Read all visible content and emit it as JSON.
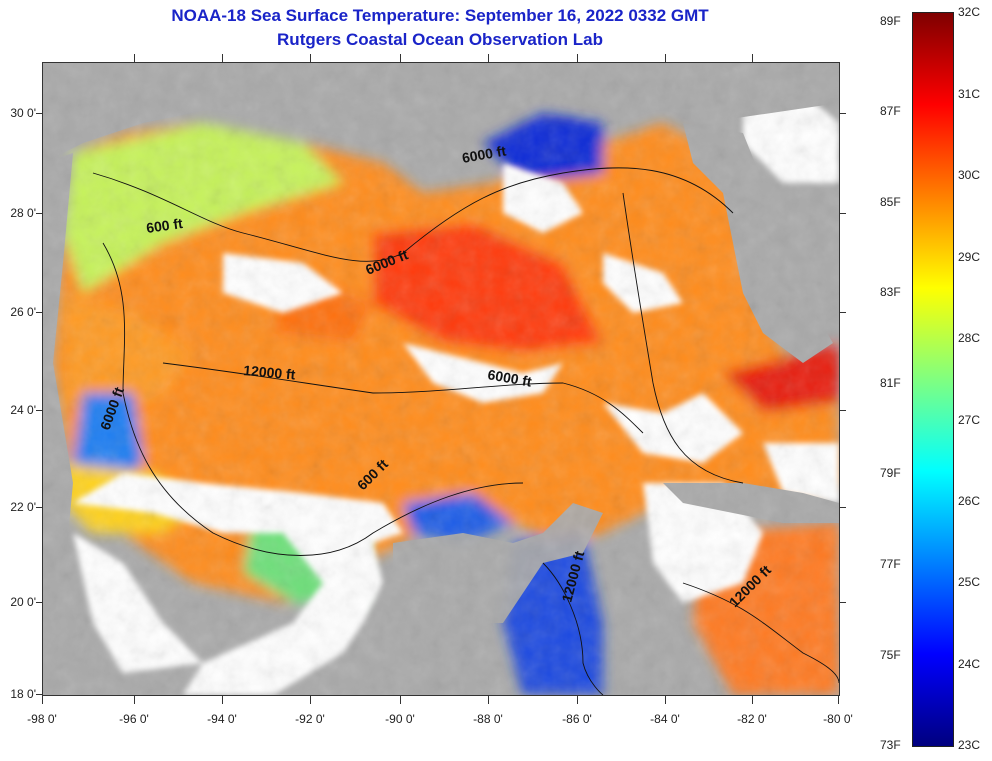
{
  "title": "NOAA-18 Sea Surface Temperature:  September 16, 2022 0332 GMT",
  "subtitle": "Rutgers Coastal Ocean Observation Lab",
  "map": {
    "lat_labels": [
      "30 0'",
      "28 0'",
      "26 0'",
      "24 0'",
      "22 0'",
      "20 0'",
      "18 0'"
    ],
    "lon_labels": [
      "-98 0'",
      "-96 0'",
      "-94 0'",
      "-92 0'",
      "-90 0'",
      "-88 0'",
      "-86 0'",
      "-84 0'",
      "-82 0'",
      "-80 0'"
    ],
    "lat_range": [
      18,
      31
    ],
    "lon_range": [
      -98,
      -80
    ],
    "land_color": "#a9a9a9",
    "cloud_color": "#ffffff",
    "contour_labels": [
      "600 ft",
      "6000 ft",
      "12000 ft",
      "6000 ft",
      "6000 ft",
      "600 ft",
      "12000 ft",
      "12000 ft",
      "6000 ft"
    ]
  },
  "colorbar": {
    "fahrenheit_labels": [
      "89F",
      "87F",
      "85F",
      "83F",
      "81F",
      "79F",
      "77F",
      "75F",
      "73F"
    ],
    "celsius_labels": [
      "32C",
      "31C",
      "30C",
      "29C",
      "28C",
      "27C",
      "26C",
      "25C",
      "24C",
      "23C"
    ],
    "range_c": [
      23,
      32
    ],
    "colors": [
      "#00007f",
      "#0000ff",
      "#0080ff",
      "#00ffff",
      "#80ff80",
      "#ffff00",
      "#ff8000",
      "#ff0000",
      "#7f0000"
    ]
  }
}
